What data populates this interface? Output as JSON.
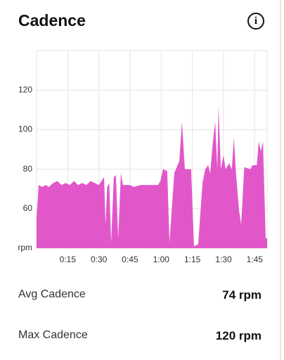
{
  "header": {
    "title": "Cadence"
  },
  "chart_data": {
    "type": "area",
    "x": [
      0,
      1,
      2.7,
      4.4,
      6,
      8,
      10,
      12,
      14,
      16,
      18,
      20,
      22,
      24,
      26,
      28,
      30,
      32.5,
      33.2,
      34,
      35,
      35.9,
      37.2,
      38.2,
      39.3,
      40.6,
      41.6,
      45,
      46.7,
      50,
      58.5,
      59.6,
      60.9,
      62.9,
      64,
      66.3,
      68.7,
      70,
      71.4,
      74.4,
      75.8,
      77.8,
      79.9,
      81.2,
      82.6,
      83.6,
      84.9,
      86,
      87,
      87.6,
      88.7,
      90,
      91,
      92.7,
      94,
      95,
      96,
      97.5,
      98.5,
      100,
      102.9,
      104,
      106,
      107,
      108,
      109,
      110.3,
      111
    ],
    "values": [
      55,
      72,
      71,
      72,
      71,
      73,
      74,
      72,
      73,
      72,
      74,
      72,
      73,
      72,
      74,
      73,
      72,
      76,
      52,
      71,
      73,
      43,
      76,
      77,
      45,
      78,
      72,
      72,
      71,
      72,
      72,
      74,
      80,
      79,
      43,
      78,
      84,
      104,
      80,
      80,
      41,
      42,
      73,
      80,
      82,
      78,
      94,
      104,
      80,
      112,
      80,
      87,
      80,
      83,
      80,
      96,
      78,
      59,
      52,
      81,
      80,
      82,
      82,
      94,
      89,
      94,
      45,
      45
    ],
    "color": "#e157c9",
    "xlim": [
      0,
      111
    ],
    "xticks": [
      {
        "value": 15,
        "label": "0:15"
      },
      {
        "value": 30,
        "label": "0:30"
      },
      {
        "value": 45,
        "label": "0:45"
      },
      {
        "value": 60,
        "label": "1:00"
      },
      {
        "value": 75,
        "label": "1:15"
      },
      {
        "value": 90,
        "label": "1:30"
      },
      {
        "value": 105,
        "label": "1:45"
      }
    ],
    "ylim": [
      40,
      140
    ],
    "yticks": [
      {
        "value": 40,
        "label": "rpm"
      },
      60,
      80,
      100,
      120
    ],
    "grid": true
  },
  "stats": [
    {
      "label": "Avg Cadence",
      "value": "74 rpm"
    },
    {
      "label": "Max Cadence",
      "value": "120 rpm"
    }
  ]
}
